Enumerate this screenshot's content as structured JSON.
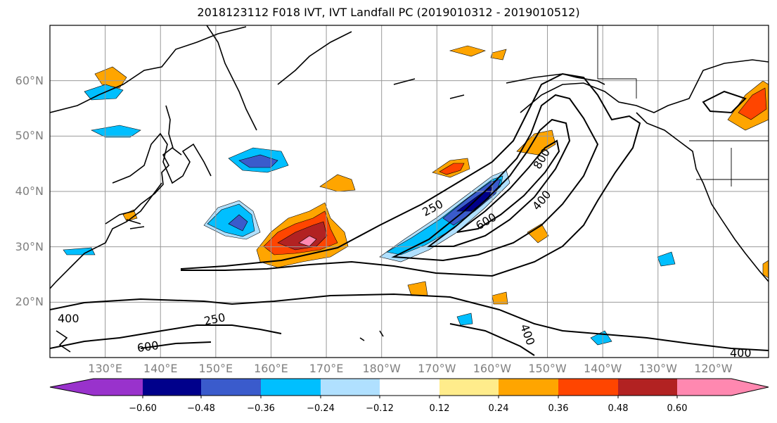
{
  "title": "2018123112 F018 IVT, IVT Landfall PC (2019010312 - 2019010512)",
  "map": {
    "lon_range": [
      120,
      250
    ],
    "lat_range": [
      10,
      70
    ],
    "lat_labels": [
      "20°N",
      "30°N",
      "40°N",
      "50°N",
      "60°N"
    ],
    "lat_values": [
      20,
      30,
      40,
      50,
      60
    ],
    "lon_labels": [
      "130°E",
      "140°E",
      "150°E",
      "160°E",
      "170°E",
      "180°W",
      "170°W",
      "160°W",
      "150°W",
      "140°W",
      "130°W",
      "120°W"
    ],
    "lon_values": [
      130,
      140,
      150,
      160,
      170,
      180,
      190,
      200,
      210,
      220,
      230,
      240
    ],
    "contour_labels": [
      "400",
      "250",
      "600",
      "250",
      "600",
      "800",
      "400",
      "400",
      "400"
    ]
  },
  "colorbar": {
    "tick_labels": [
      "−0.60",
      "−0.48",
      "−0.36",
      "−0.24",
      "−0.12",
      "0.12",
      "0.24",
      "0.36",
      "0.48",
      "0.60"
    ],
    "colors": [
      "#9932cc",
      "#00008b",
      "#3a5bcc",
      "#00bfff",
      "#b0e0ff",
      "#ffffff",
      "#ffec8b",
      "#ffa500",
      "#ff4500",
      "#b22222",
      "#ff88b0"
    ]
  }
}
